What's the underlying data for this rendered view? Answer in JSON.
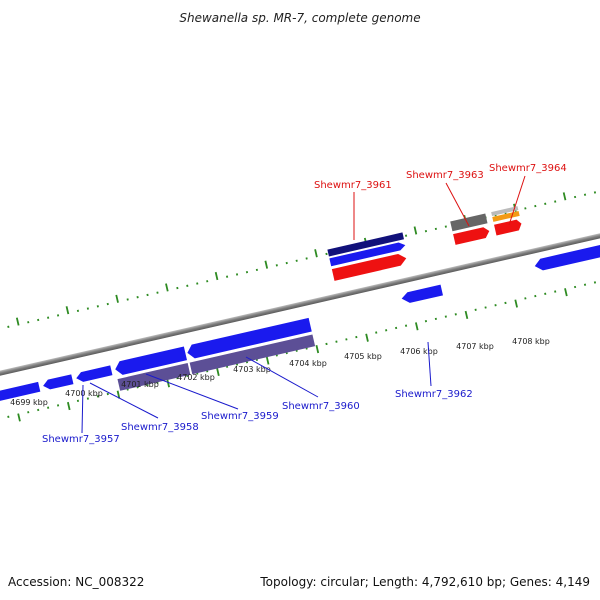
{
  "title": "Shewanella sp. MR-7, complete genome",
  "footer": {
    "accession": "Accession: NC_008322",
    "summary": "Topology: circular; Length: 4,792,610 bp; Genes: 4,149"
  },
  "tick_labels": [
    "4699 kbp",
    "4700 kbp",
    "4701 kbp",
    "4702 kbp",
    "4703 kbp",
    "4704 kbp",
    "4705 kbp",
    "4706 kbp",
    "4707 kbp",
    "4708 kbp"
  ],
  "gene_labels": {
    "blue": [
      "Shewmr7_3957",
      "Shewmr7_3958",
      "Shewmr7_3959",
      "Shewmr7_3960",
      "Shewmr7_3962"
    ],
    "red": [
      "Shewmr7_3961",
      "Shewmr7_3963",
      "Shewmr7_3964"
    ]
  },
  "colors": {
    "cds_forward": "#ee1111",
    "cds_reverse": "#1a1aee",
    "gene_forward": "#11117a",
    "gene_reverse": "#5c4f96",
    "gene_gray": "#666666",
    "orange": "#f39a14",
    "tick": "#2e8b22",
    "backbone": "#808080"
  }
}
